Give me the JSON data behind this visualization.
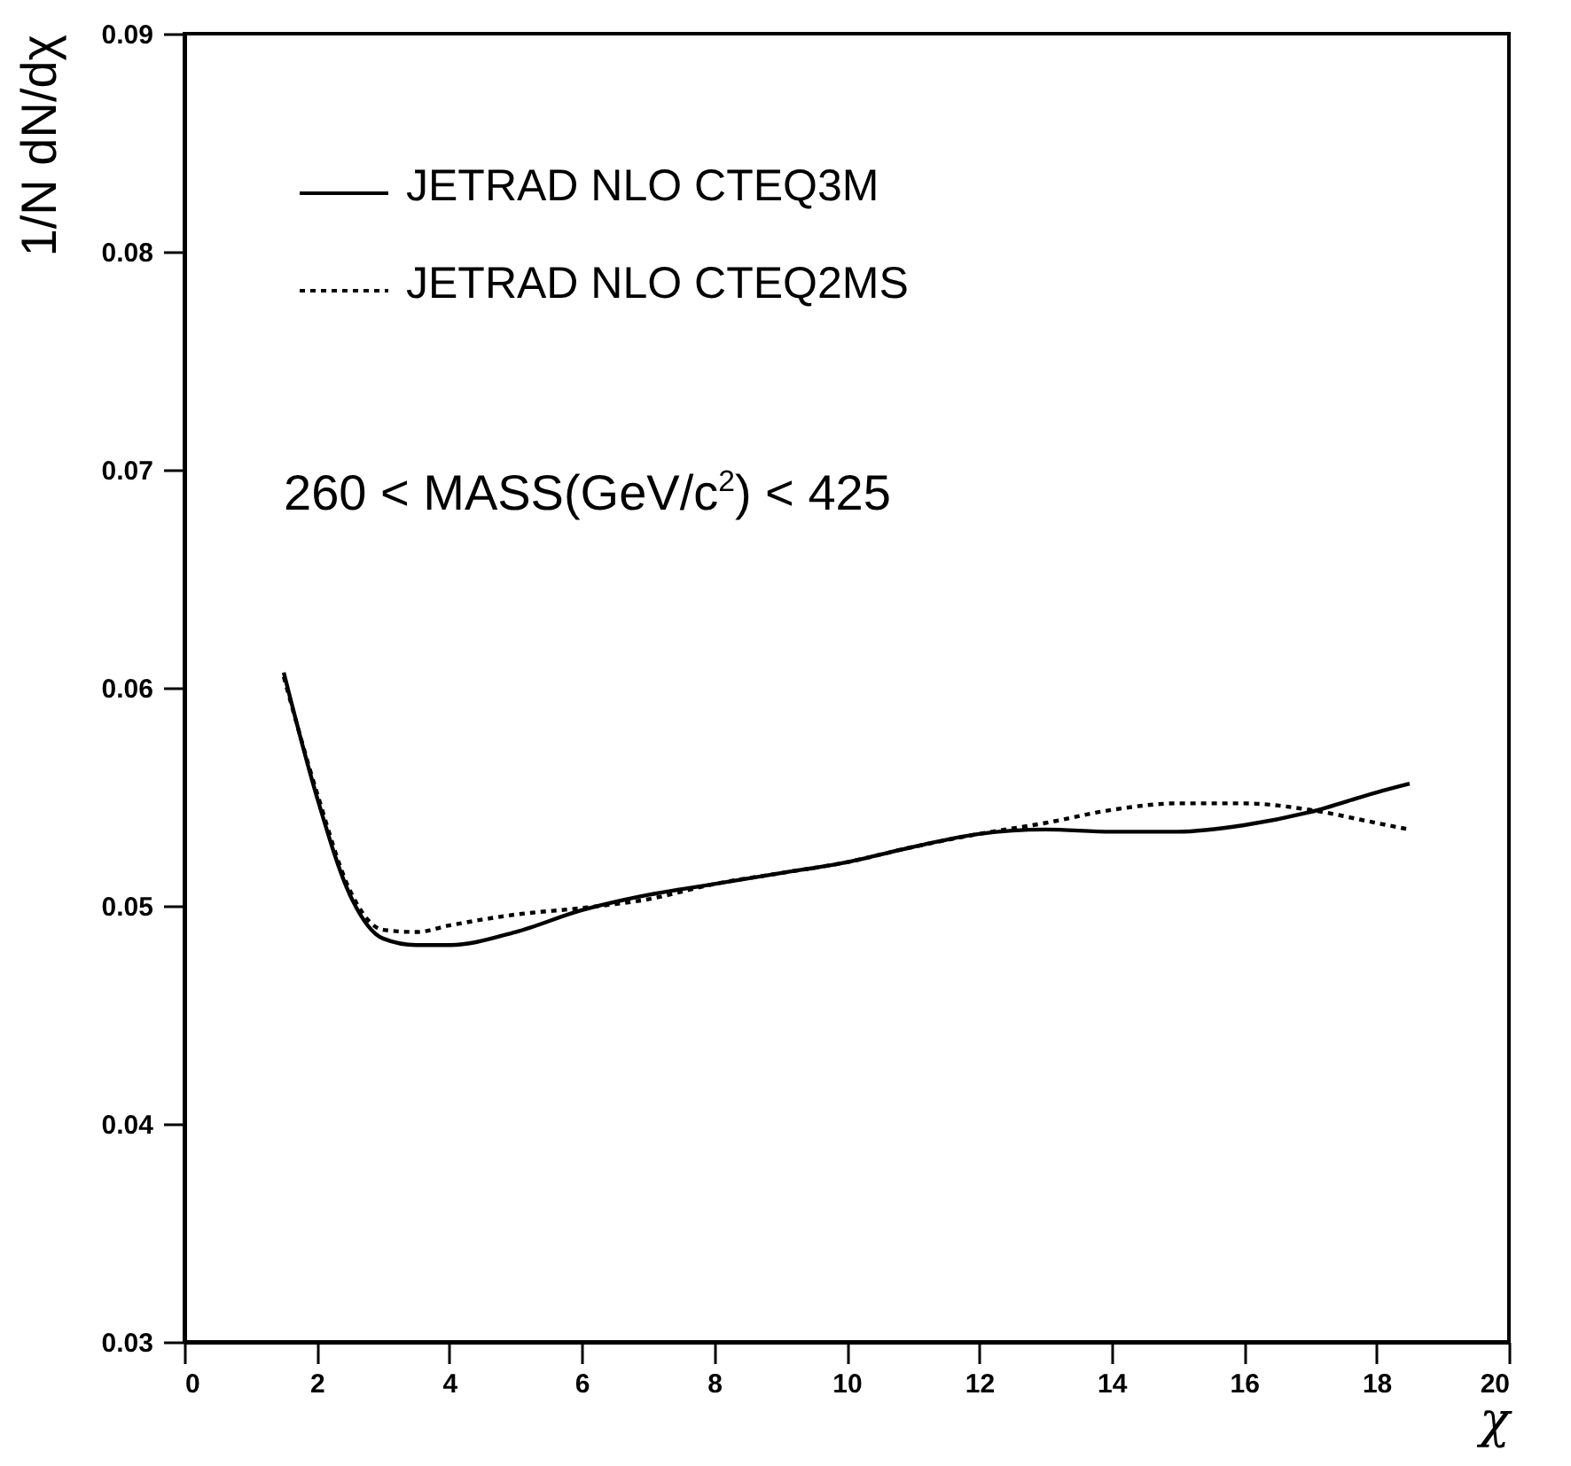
{
  "chart_data": {
    "type": "line",
    "xlabel": "χ",
    "ylabel": "1/N dN/dχ",
    "annotations": [
      "260 < MASS(GeV/c$^{2}$) < 425"
    ],
    "xlim": [
      0,
      20
    ],
    "xticks": [
      0,
      2,
      4,
      6,
      8,
      10,
      12,
      14,
      16,
      18,
      20
    ],
    "ylim": [
      0.03,
      0.09
    ],
    "yticks": [
      0.03,
      0.04,
      0.05,
      0.06,
      0.07,
      0.08,
      0.09
    ],
    "grid": false,
    "legend": "top left",
    "marker": "none",
    "series": [
      {
        "name": "JETRAD NLO CTEQ3M",
        "color": "#000000",
        "line_style": "solid",
        "x": [
          1.5,
          2,
          2.5,
          3,
          3.5,
          4,
          5,
          6,
          7,
          8,
          9,
          10,
          11,
          12,
          13,
          14,
          15,
          16,
          17,
          18,
          18.5
        ],
        "values": [
          0.0607,
          0.055,
          0.0505,
          0.0485,
          0.0482,
          0.0482,
          0.0488,
          0.0498,
          0.0505,
          0.051,
          0.0515,
          0.052,
          0.0527,
          0.0533,
          0.0535,
          0.0534,
          0.0534,
          0.0537,
          0.0543,
          0.0552,
          0.0556
        ]
      },
      {
        "name": "JETRAD NLO CTEQ2MS",
        "color": "#000000",
        "line_style": "dotted",
        "x": [
          1.5,
          2,
          2.5,
          3,
          3.5,
          4,
          5,
          6,
          7,
          8,
          9,
          10,
          11,
          12,
          13,
          14,
          15,
          16,
          17,
          18,
          18.5
        ],
        "values": [
          0.0605,
          0.0552,
          0.0507,
          0.0489,
          0.0488,
          0.0491,
          0.0496,
          0.0499,
          0.0503,
          0.051,
          0.0515,
          0.052,
          0.0527,
          0.0533,
          0.0538,
          0.0544,
          0.0547,
          0.0547,
          0.0544,
          0.0538,
          0.0535
        ]
      }
    ]
  }
}
